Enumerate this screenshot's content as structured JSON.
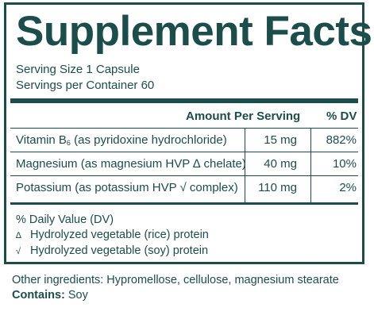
{
  "panel": {
    "title": "Supplement Facts",
    "serving_size": "Serving Size 1 Capsule",
    "servings_per_container": "Servings per Container 60",
    "header": {
      "amount": "Amount Per Serving",
      "dv": "% DV"
    },
    "rows": [
      {
        "name_main": "Vitamin B",
        "name_sub": "6",
        "name_rest": " (as pyridoxine hydrochloride)",
        "amount": "15 mg",
        "dv": "882%"
      },
      {
        "name": "Magnesium (as magnesium HVP ∆ chelate)",
        "amount": "40 mg",
        "dv": "10%"
      },
      {
        "name": "Potassium (as potassium HVP √ complex)",
        "amount": "110 mg",
        "dv": "2%"
      }
    ],
    "footnotes": {
      "dv_note": "% Daily Value (DV)",
      "items": [
        {
          "symbol": "∆",
          "text": "Hydrolyzed vegetable (rice) protein"
        },
        {
          "symbol": "√",
          "text": "Hydrolyzed vegetable (soy) protein"
        }
      ]
    }
  },
  "other_ingredients": "Other ingredients: Hypromellose, cellulose, magnesium stearate",
  "contains": {
    "label": "Contains:",
    "value": " Soy"
  },
  "colors": {
    "primary": "#1b4d4a",
    "background": "#ffffff"
  }
}
